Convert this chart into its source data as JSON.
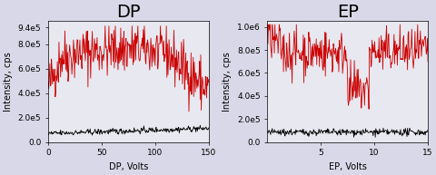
{
  "dp_title": "DP",
  "ep_title": "EP",
  "dp_xlabel": "DP, Volts",
  "ep_xlabel": "EP, Volts",
  "ylabel": "Intensity, cps",
  "dp_xlim": [
    0,
    150
  ],
  "ep_xlim": [
    0,
    15
  ],
  "dp_xticks": [
    0,
    50,
    100,
    150
  ],
  "ep_xticks": [
    5,
    10,
    15
  ],
  "dp_yticks": [
    0.0,
    200000.0,
    400000.0,
    600000.0,
    800000.0,
    940000.0
  ],
  "ep_yticks": [
    0.0,
    200000.0,
    400000.0,
    600000.0,
    800000.0,
    1000000.0
  ],
  "dp_ytick_labels": [
    "0.0",
    "2.0e5",
    "4.0e5",
    "6.0e5",
    "8.0e5",
    "9.4e5"
  ],
  "ep_ytick_labels": [
    "0.0",
    "2.0e5",
    "4.0e5",
    "6.0e5",
    "8.0e5",
    "1.0e6"
  ],
  "dp_ylim": [
    0,
    990000.0
  ],
  "ep_ylim": [
    0,
    1050000.0
  ],
  "red_color": "#cc0000",
  "black_color": "#000000",
  "bg_color": "#e8e8f0",
  "fig_bg_color": "#d8d8e8",
  "title_fontsize": 14,
  "axis_fontsize": 7,
  "tick_fontsize": 6.5,
  "seed": 42
}
